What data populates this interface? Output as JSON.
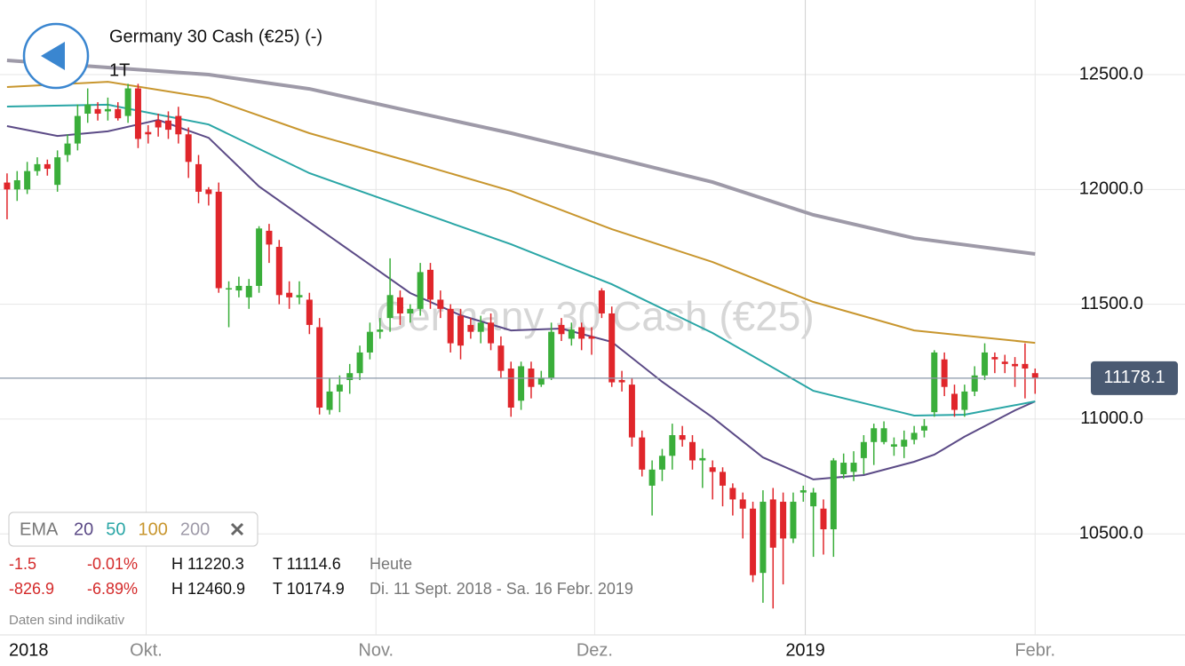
{
  "chart_data": {
    "type": "candlestick",
    "title": "Germany 30 Cash (€25) (-)",
    "interval": "1T",
    "watermark": "Germany 30 Cash (€25)",
    "x_start_label": "2018",
    "xlim": [
      -0.7,
      107
    ],
    "xticks": [
      {
        "value": 13.8,
        "label": "Okt."
      },
      {
        "value": 36.6,
        "label": "Nov."
      },
      {
        "value": 58.3,
        "label": "Dez."
      },
      {
        "value": 79.2,
        "label": "2019"
      },
      {
        "value": 102,
        "label": "Febr."
      }
    ],
    "ylim": [
      10060,
      12825
    ],
    "yticks": [
      {
        "value": 10500,
        "label": "10500.0"
      },
      {
        "value": 11000,
        "label": "11000.0"
      },
      {
        "value": 11500,
        "label": "11500.0"
      },
      {
        "value": 12000,
        "label": "12000.0"
      },
      {
        "value": 12500,
        "label": "12500.0"
      }
    ],
    "grid": true,
    "last_price": 11178.1,
    "up_color": "#3aae3a",
    "down_color": "#e0262b",
    "candles": {
      "open": [
        12030,
        12000,
        12000,
        12080,
        12110,
        12020,
        12150,
        12200,
        12330,
        12350,
        12340,
        12350,
        12320,
        12440,
        12250,
        12300,
        12300,
        12320,
        12240,
        12110,
        12000,
        11990,
        11570,
        11560,
        11530,
        11580,
        11820,
        11750,
        11550,
        11530,
        11520,
        11400,
        11040,
        11120,
        11170,
        11200,
        11290,
        11380,
        11440,
        11530,
        11460,
        11480,
        11650,
        11520,
        11480,
        11450,
        11410,
        11380,
        11420,
        11320,
        11220,
        11080,
        11220,
        11150,
        11180,
        11410,
        11350,
        11400,
        11360,
        11560,
        11460,
        11170,
        11150,
        10920,
        10710,
        10780,
        10840,
        10930,
        10900,
        10820,
        10790,
        10770,
        10700,
        10650,
        10610,
        10330,
        10650,
        10640,
        10480,
        10680,
        10620,
        10610,
        10520,
        10760,
        10770,
        10830,
        10900,
        10900,
        10880,
        10880,
        10910,
        10950,
        11030,
        11260,
        11110,
        11040,
        11120,
        11190,
        11270,
        11250,
        11240,
        11240,
        11200
      ],
      "high": [
        12070,
        12080,
        12120,
        12140,
        12130,
        12170,
        12240,
        12370,
        12440,
        12380,
        12400,
        12380,
        12460,
        12460,
        12280,
        12330,
        12340,
        12360,
        12270,
        12150,
        12010,
        12030,
        11600,
        11620,
        11610,
        11840,
        11850,
        11780,
        11600,
        11600,
        11550,
        11440,
        11180,
        11190,
        11240,
        11320,
        11420,
        11440,
        11700,
        11560,
        11500,
        11680,
        11680,
        11560,
        11500,
        11480,
        11440,
        11450,
        11460,
        11360,
        11250,
        11250,
        11250,
        11210,
        11420,
        11440,
        11420,
        11420,
        11400,
        11570,
        11490,
        11210,
        11180,
        10950,
        10820,
        10870,
        10980,
        10970,
        10930,
        10870,
        10820,
        10790,
        10720,
        10680,
        10640,
        10690,
        10700,
        10680,
        10680,
        10710,
        10700,
        10650,
        10830,
        10850,
        10860,
        10930,
        10980,
        10990,
        10920,
        10950,
        10970,
        11000,
        11300,
        11290,
        11150,
        11150,
        11230,
        11330,
        11290,
        11280,
        11270,
        11330,
        11220
      ],
      "low": [
        11870,
        11950,
        11980,
        12060,
        12060,
        11990,
        12120,
        12170,
        12290,
        12300,
        12300,
        12300,
        12290,
        12180,
        12200,
        12230,
        12220,
        12200,
        12050,
        11940,
        11930,
        11550,
        11400,
        11530,
        11480,
        11550,
        11680,
        11500,
        11480,
        11500,
        11370,
        11020,
        11020,
        11030,
        11110,
        11170,
        11260,
        11350,
        11380,
        11410,
        11420,
        11450,
        11480,
        11440,
        11290,
        11260,
        11350,
        11330,
        11300,
        11180,
        11010,
        11040,
        11090,
        11140,
        11170,
        11340,
        11320,
        11300,
        11280,
        11440,
        11140,
        11120,
        10880,
        10750,
        10580,
        10730,
        10780,
        10880,
        10780,
        10700,
        10650,
        10620,
        10580,
        10480,
        10290,
        10200,
        10175,
        10280,
        10460,
        10640,
        10400,
        10410,
        10400,
        10740,
        10730,
        10760,
        10800,
        10890,
        10840,
        10830,
        10890,
        10920,
        11010,
        11100,
        11010,
        11010,
        11100,
        11170,
        11200,
        11200,
        11140,
        11090,
        11110
      ],
      "close": [
        12000,
        12040,
        12080,
        12110,
        12090,
        12140,
        12200,
        12320,
        12370,
        12330,
        12350,
        12310,
        12440,
        12220,
        12240,
        12270,
        12260,
        12240,
        12120,
        11990,
        11980,
        11570,
        11570,
        11580,
        11580,
        11830,
        11760,
        11540,
        11530,
        11540,
        11410,
        11050,
        11120,
        11150,
        11200,
        11290,
        11380,
        11390,
        11540,
        11460,
        11480,
        11640,
        11520,
        11480,
        11330,
        11320,
        11380,
        11420,
        11330,
        11210,
        11050,
        11230,
        11140,
        11180,
        11380,
        11370,
        11390,
        11350,
        11350,
        11460,
        11160,
        11160,
        10920,
        10780,
        10780,
        10840,
        10930,
        10910,
        10820,
        10830,
        10770,
        10710,
        10650,
        10610,
        10320,
        10640,
        10440,
        10480,
        10640,
        10690,
        10680,
        10520,
        10820,
        10810,
        10810,
        10900,
        10960,
        10960,
        10890,
        10910,
        10940,
        10970,
        11290,
        11140,
        11040,
        11120,
        11190,
        11290,
        11260,
        11240,
        11230,
        11220,
        11180
      ]
    },
    "legend_label": "EMA",
    "lines": [
      {
        "name": "20",
        "color": "#5b4a86",
        "x": [
          0,
          5,
          10,
          15,
          20,
          25,
          30,
          35,
          40,
          45,
          50,
          55,
          60,
          65,
          70,
          75,
          80,
          85,
          90,
          92,
          95,
          100,
          102
        ],
        "values": [
          12276,
          12233,
          12253,
          12303,
          12225,
          12013,
          11858,
          11703,
          11549,
          11452,
          11386,
          11394,
          11336,
          11162,
          11007,
          10833,
          10737,
          10756,
          10814,
          10845,
          10923,
          11038,
          11077
        ]
      },
      {
        "name": "50",
        "color": "#2aa6a6",
        "x": [
          0,
          10,
          20,
          30,
          40,
          50,
          60,
          70,
          80,
          90,
          95,
          102
        ],
        "values": [
          12361,
          12369,
          12283,
          12071,
          11916,
          11761,
          11587,
          11375,
          11123,
          11015,
          11019,
          11077
        ]
      },
      {
        "name": "100",
        "color": "#c8962e",
        "x": [
          0,
          10,
          20,
          30,
          40,
          50,
          60,
          70,
          80,
          90,
          102
        ],
        "values": [
          12446,
          12469,
          12399,
          12245,
          12121,
          11993,
          11827,
          11684,
          11510,
          11386,
          11332
        ]
      },
      {
        "name": "200",
        "color": "#9e9aa8",
        "x": [
          0,
          10,
          20,
          30,
          40,
          50,
          60,
          70,
          80,
          90,
          102
        ],
        "values": [
          12562,
          12531,
          12500,
          12438,
          12341,
          12245,
          12140,
          12032,
          11889,
          11788,
          11719
        ]
      }
    ],
    "stats": [
      [
        "-1.5",
        "-0.01%",
        "H 11220.3",
        "T 11114.6",
        "Heute"
      ],
      [
        "-826.9",
        "-6.89%",
        "H 12460.9",
        "T 10174.9",
        "Di. 11 Sept. 2018 - Sa. 16 Febr. 2019"
      ]
    ],
    "footnote": "Daten sind indikativ"
  }
}
